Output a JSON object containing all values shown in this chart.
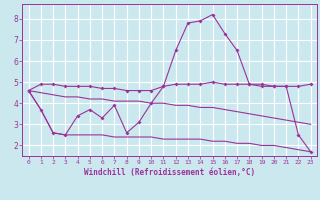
{
  "xlabel": "Windchill (Refroidissement éolien,°C)",
  "background_color": "#cce8ef",
  "grid_color": "#ffffff",
  "line_color": "#993399",
  "xlim": [
    -0.5,
    23.5
  ],
  "ylim": [
    1.5,
    8.7
  ],
  "xticks": [
    0,
    1,
    2,
    3,
    4,
    5,
    6,
    7,
    8,
    9,
    10,
    11,
    12,
    13,
    14,
    15,
    16,
    17,
    18,
    19,
    20,
    21,
    22,
    23
  ],
  "yticks": [
    2,
    3,
    4,
    5,
    6,
    7,
    8
  ],
  "series": [
    {
      "x": [
        0,
        1,
        2,
        3,
        4,
        5,
        6,
        7,
        8,
        9,
        10,
        11,
        12,
        13,
        14,
        15,
        16,
        17,
        18,
        19,
        20,
        21,
        22,
        23
      ],
      "y": [
        4.6,
        3.7,
        2.6,
        2.5,
        3.4,
        3.7,
        3.3,
        3.9,
        2.6,
        3.1,
        4.0,
        4.8,
        6.5,
        7.8,
        7.9,
        8.2,
        7.3,
        6.5,
        4.9,
        4.8,
        4.8,
        4.8,
        2.5,
        1.7
      ],
      "marker": true
    },
    {
      "x": [
        0,
        1,
        2,
        3,
        4,
        5,
        6,
        7,
        8,
        9,
        10,
        11,
        12,
        13,
        14,
        15,
        16,
        17,
        18,
        19,
        20,
        21,
        22,
        23
      ],
      "y": [
        4.6,
        4.9,
        4.9,
        4.8,
        4.8,
        4.8,
        4.7,
        4.7,
        4.6,
        4.6,
        4.6,
        4.8,
        4.9,
        4.9,
        4.9,
        5.0,
        4.9,
        4.9,
        4.9,
        4.9,
        4.8,
        4.8,
        4.8,
        4.9
      ],
      "marker": true
    },
    {
      "x": [
        0,
        1,
        2,
        3,
        4,
        5,
        6,
        7,
        8,
        9,
        10,
        11,
        12,
        13,
        14,
        15,
        16,
        17,
        18,
        19,
        20,
        21,
        22,
        23
      ],
      "y": [
        4.6,
        4.5,
        4.4,
        4.3,
        4.3,
        4.2,
        4.2,
        4.1,
        4.1,
        4.1,
        4.0,
        4.0,
        3.9,
        3.9,
        3.8,
        3.8,
        3.7,
        3.6,
        3.5,
        3.4,
        3.3,
        3.2,
        3.1,
        3.0
      ],
      "marker": false
    },
    {
      "x": [
        0,
        1,
        2,
        3,
        4,
        5,
        6,
        7,
        8,
        9,
        10,
        11,
        12,
        13,
        14,
        15,
        16,
        17,
        18,
        19,
        20,
        21,
        22,
        23
      ],
      "y": [
        4.6,
        3.7,
        2.6,
        2.5,
        2.5,
        2.5,
        2.5,
        2.4,
        2.4,
        2.4,
        2.4,
        2.3,
        2.3,
        2.3,
        2.3,
        2.2,
        2.2,
        2.1,
        2.1,
        2.0,
        2.0,
        1.9,
        1.8,
        1.7
      ],
      "marker": false
    }
  ]
}
